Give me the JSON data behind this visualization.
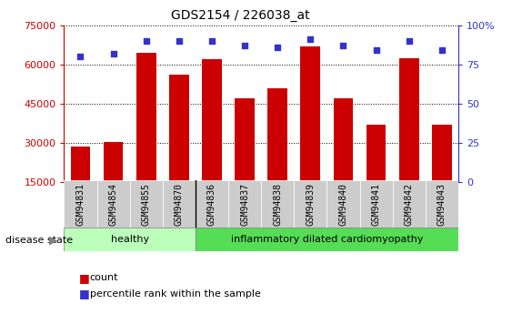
{
  "title": "GDS2154 / 226038_at",
  "samples": [
    "GSM94831",
    "GSM94854",
    "GSM94855",
    "GSM94870",
    "GSM94836",
    "GSM94837",
    "GSM94838",
    "GSM94839",
    "GSM94840",
    "GSM94841",
    "GSM94842",
    "GSM94843"
  ],
  "counts": [
    28500,
    30500,
    64500,
    56000,
    62000,
    47000,
    51000,
    67000,
    47000,
    37000,
    62500,
    37000
  ],
  "percentile_ranks": [
    80,
    82,
    90,
    90,
    90,
    87,
    86,
    91,
    87,
    84,
    90,
    84
  ],
  "bar_color": "#cc0000",
  "dot_color": "#3333cc",
  "ylim_left": [
    15000,
    75000
  ],
  "yticks_left": [
    15000,
    30000,
    45000,
    60000,
    75000
  ],
  "ylim_right": [
    0,
    100
  ],
  "yticks_right": [
    0,
    25,
    50,
    75,
    100
  ],
  "ylabel_right_labels": [
    "0",
    "25",
    "50",
    "75",
    "100%"
  ],
  "healthy_count": 4,
  "healthy_label": "healthy",
  "disease_label": "inflammatory dilated cardiomyopathy",
  "disease_state_label": "disease state",
  "legend_count_label": "count",
  "legend_percentile_label": "percentile rank within the sample",
  "healthy_bg": "#bbffbb",
  "disease_bg": "#55dd55",
  "tick_label_bg": "#cccccc"
}
